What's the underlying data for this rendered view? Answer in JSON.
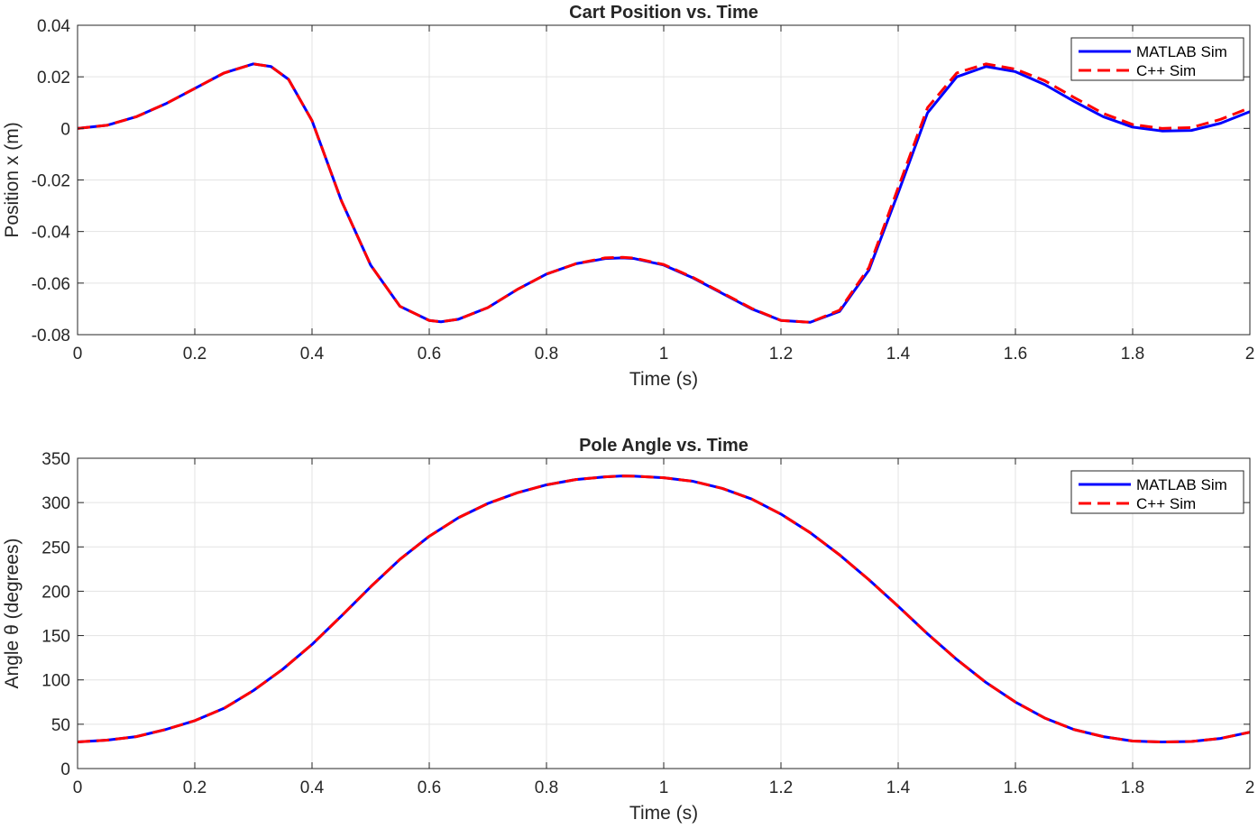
{
  "chart_data": [
    {
      "type": "line",
      "title": "Cart Position vs. Time",
      "xlabel": "Time (s)",
      "ylabel": "Position x (m)",
      "xlim": [
        0,
        2
      ],
      "ylim": [
        -0.08,
        0.04
      ],
      "xticks": [
        0,
        0.2,
        0.4,
        0.6,
        0.8,
        1,
        1.2,
        1.4,
        1.6,
        1.8,
        2
      ],
      "xtick_labels": [
        "0",
        "0.2",
        "0.4",
        "0.6",
        "0.8",
        "1",
        "1.2",
        "1.4",
        "1.6",
        "1.8",
        "2"
      ],
      "yticks": [
        -0.08,
        -0.06,
        -0.04,
        -0.02,
        0,
        0.02,
        0.04
      ],
      "ytick_labels": [
        "-0.08",
        "-0.06",
        "-0.04",
        "-0.02",
        "0",
        "0.02",
        "0.04"
      ],
      "grid": true,
      "legend_position": "top-right",
      "series": [
        {
          "name": "MATLAB Sim",
          "color": "#0000ff",
          "style": "solid",
          "x": [
            0,
            0.05,
            0.1,
            0.15,
            0.2,
            0.25,
            0.3,
            0.33,
            0.36,
            0.4,
            0.45,
            0.5,
            0.55,
            0.6,
            0.62,
            0.65,
            0.7,
            0.75,
            0.8,
            0.85,
            0.9,
            0.93,
            0.95,
            1.0,
            1.05,
            1.1,
            1.15,
            1.2,
            1.25,
            1.3,
            1.35,
            1.4,
            1.45,
            1.5,
            1.55,
            1.6,
            1.65,
            1.7,
            1.75,
            1.8,
            1.85,
            1.9,
            1.95,
            2.0
          ],
          "y": [
            0,
            0.0012,
            0.0045,
            0.0095,
            0.0155,
            0.0215,
            0.025,
            0.024,
            0.019,
            0.003,
            -0.028,
            -0.053,
            -0.069,
            -0.0745,
            -0.075,
            -0.074,
            -0.0695,
            -0.0625,
            -0.0565,
            -0.0525,
            -0.0505,
            -0.0502,
            -0.0505,
            -0.053,
            -0.058,
            -0.064,
            -0.07,
            -0.0745,
            -0.0752,
            -0.071,
            -0.055,
            -0.025,
            0.006,
            0.02,
            0.024,
            0.022,
            0.017,
            0.0105,
            0.0045,
            0.0005,
            -0.001,
            -0.0008,
            0.002,
            0.0065
          ]
        },
        {
          "name": "C++ Sim",
          "color": "#ff0000",
          "style": "dashed",
          "x": [
            0,
            0.05,
            0.1,
            0.15,
            0.2,
            0.25,
            0.3,
            0.33,
            0.36,
            0.4,
            0.45,
            0.5,
            0.55,
            0.6,
            0.62,
            0.65,
            0.7,
            0.75,
            0.8,
            0.85,
            0.9,
            0.93,
            0.95,
            1.0,
            1.05,
            1.1,
            1.15,
            1.2,
            1.25,
            1.3,
            1.35,
            1.4,
            1.45,
            1.5,
            1.55,
            1.6,
            1.65,
            1.7,
            1.75,
            1.8,
            1.85,
            1.9,
            1.95,
            2.0
          ],
          "y": [
            0,
            0.0012,
            0.0045,
            0.0095,
            0.0155,
            0.0215,
            0.025,
            0.024,
            0.019,
            0.003,
            -0.028,
            -0.053,
            -0.069,
            -0.0745,
            -0.075,
            -0.074,
            -0.0695,
            -0.0625,
            -0.0565,
            -0.0525,
            -0.0502,
            -0.05,
            -0.0503,
            -0.0528,
            -0.0578,
            -0.0638,
            -0.0698,
            -0.0745,
            -0.0752,
            -0.0705,
            -0.054,
            -0.023,
            0.008,
            0.0215,
            0.025,
            0.023,
            0.0185,
            0.012,
            0.0058,
            0.0015,
            0.0,
            0.0003,
            0.0035,
            0.008
          ]
        }
      ]
    },
    {
      "type": "line",
      "title": "Pole Angle vs. Time",
      "xlabel": "Time (s)",
      "ylabel": "Angle  θ  (degrees)",
      "xlim": [
        0,
        2
      ],
      "ylim": [
        0,
        350
      ],
      "xticks": [
        0,
        0.2,
        0.4,
        0.6,
        0.8,
        1,
        1.2,
        1.4,
        1.6,
        1.8,
        2
      ],
      "xtick_labels": [
        "0",
        "0.2",
        "0.4",
        "0.6",
        "0.8",
        "1",
        "1.2",
        "1.4",
        "1.6",
        "1.8",
        "2"
      ],
      "yticks": [
        0,
        50,
        100,
        150,
        200,
        250,
        300,
        350
      ],
      "ytick_labels": [
        "0",
        "50",
        "100",
        "150",
        "200",
        "250",
        "300",
        "350"
      ],
      "grid": true,
      "legend_position": "top-right",
      "series": [
        {
          "name": "MATLAB Sim",
          "color": "#0000ff",
          "style": "solid",
          "x": [
            0,
            0.05,
            0.1,
            0.15,
            0.2,
            0.25,
            0.3,
            0.35,
            0.4,
            0.45,
            0.5,
            0.55,
            0.6,
            0.65,
            0.7,
            0.75,
            0.8,
            0.85,
            0.9,
            0.93,
            0.95,
            1.0,
            1.05,
            1.1,
            1.15,
            1.2,
            1.25,
            1.3,
            1.35,
            1.4,
            1.45,
            1.5,
            1.55,
            1.6,
            1.65,
            1.7,
            1.75,
            1.8,
            1.85,
            1.9,
            1.95,
            2.0
          ],
          "y": [
            30,
            32,
            36,
            44,
            54,
            68,
            88,
            112,
            140,
            172,
            205,
            236,
            262,
            283,
            299,
            311,
            320,
            326,
            329,
            330,
            329.8,
            328,
            324,
            316,
            304,
            287,
            266,
            241,
            213,
            183,
            152,
            123,
            97,
            75,
            57,
            44,
            36,
            31,
            30,
            30.5,
            34,
            41
          ]
        },
        {
          "name": "C++ Sim",
          "color": "#ff0000",
          "style": "dashed",
          "x": [
            0,
            0.05,
            0.1,
            0.15,
            0.2,
            0.25,
            0.3,
            0.35,
            0.4,
            0.45,
            0.5,
            0.55,
            0.6,
            0.65,
            0.7,
            0.75,
            0.8,
            0.85,
            0.9,
            0.93,
            0.95,
            1.0,
            1.05,
            1.1,
            1.15,
            1.2,
            1.25,
            1.3,
            1.35,
            1.4,
            1.45,
            1.5,
            1.55,
            1.6,
            1.65,
            1.7,
            1.75,
            1.8,
            1.85,
            1.9,
            1.95,
            2.0
          ],
          "y": [
            30,
            32,
            36,
            44,
            54,
            68,
            88,
            112,
            140,
            172,
            205,
            236,
            262,
            283,
            299,
            311,
            320,
            326,
            329,
            330,
            329.8,
            328,
            324,
            316,
            304,
            287,
            266,
            241,
            213,
            183,
            152,
            123,
            97,
            75,
            57,
            44,
            36,
            31,
            30,
            30.5,
            34,
            41
          ]
        }
      ]
    }
  ]
}
